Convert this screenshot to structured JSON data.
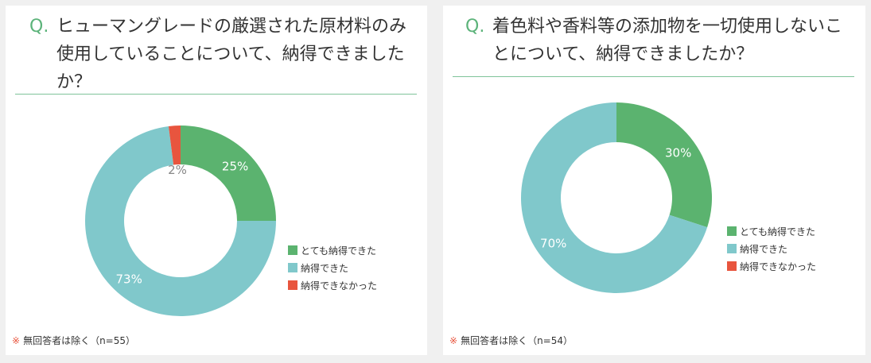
{
  "colors": {
    "very_satisfied": "#5bb36f",
    "satisfied": "#80c8cb",
    "not_satisfied": "#e8553e"
  },
  "q_prefix": "Q.",
  "legend": [
    "とても納得できた",
    "納得できた",
    "納得できなかった"
  ],
  "cards": [
    {
      "question": "ヒューマングレードの厳選された原材料のみ使用していることについて、納得できましたか？",
      "note_mark": "※",
      "note_text": "無回答者は除く（n=55）"
    },
    {
      "question": "着色料や香料等の添加物を一切使用しないことについて、納得できましたか？",
      "note_mark": "※",
      "note_text": "無回答者は除く（n=54）"
    }
  ],
  "chart_data": [
    {
      "type": "pie",
      "categories": [
        "とても納得できた",
        "納得できた",
        "納得できなかった"
      ],
      "values": [
        25,
        73,
        2
      ],
      "labels": [
        "25%",
        "73%",
        "2%"
      ]
    },
    {
      "type": "pie",
      "categories": [
        "とても納得できた",
        "納得できた",
        "納得できなかった"
      ],
      "values": [
        30,
        70,
        0
      ],
      "labels": [
        "30%",
        "70%",
        ""
      ]
    }
  ]
}
